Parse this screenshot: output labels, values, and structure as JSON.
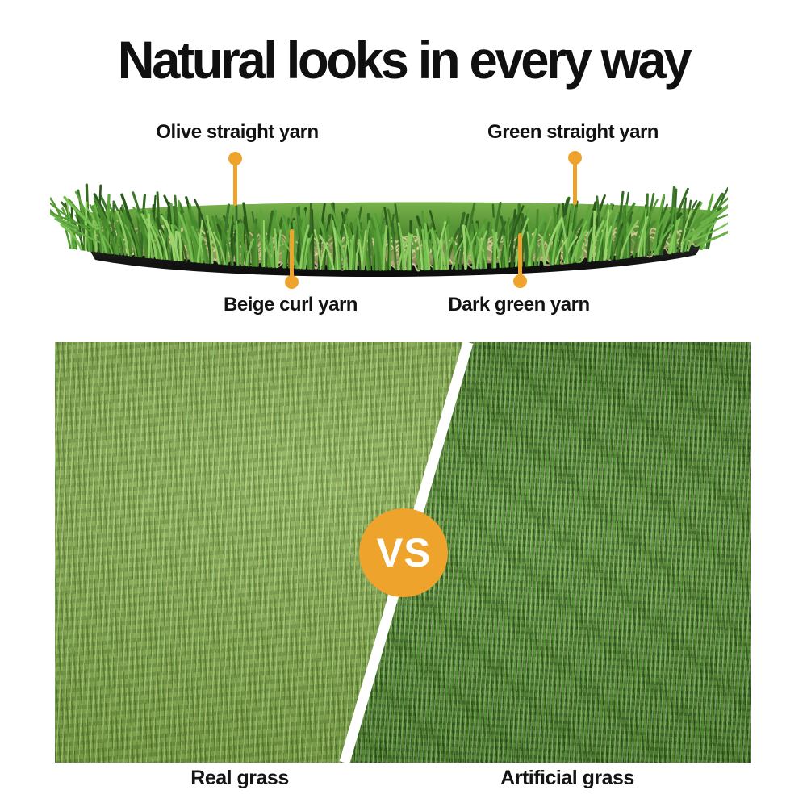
{
  "title": "Natural looks in every way",
  "callouts": {
    "olive": {
      "label": "Olive straight yarn"
    },
    "green": {
      "label": "Green straight yarn"
    },
    "beige": {
      "label": "Beige curl yarn"
    },
    "dark": {
      "label": "Dark green yarn"
    }
  },
  "comparison": {
    "vs_label": "VS",
    "left_label": "Real grass",
    "right_label": "Artificial grass"
  },
  "icons": {
    "pin": "orange circle marker with stem"
  },
  "colors": {
    "accent_orange": "#eda32c",
    "title_text": "#101010",
    "real_grass_base": "#85ac51",
    "artificial_grass_base": "#4b822d",
    "backing_black": "#161616",
    "divider_white": "#ffffff"
  }
}
